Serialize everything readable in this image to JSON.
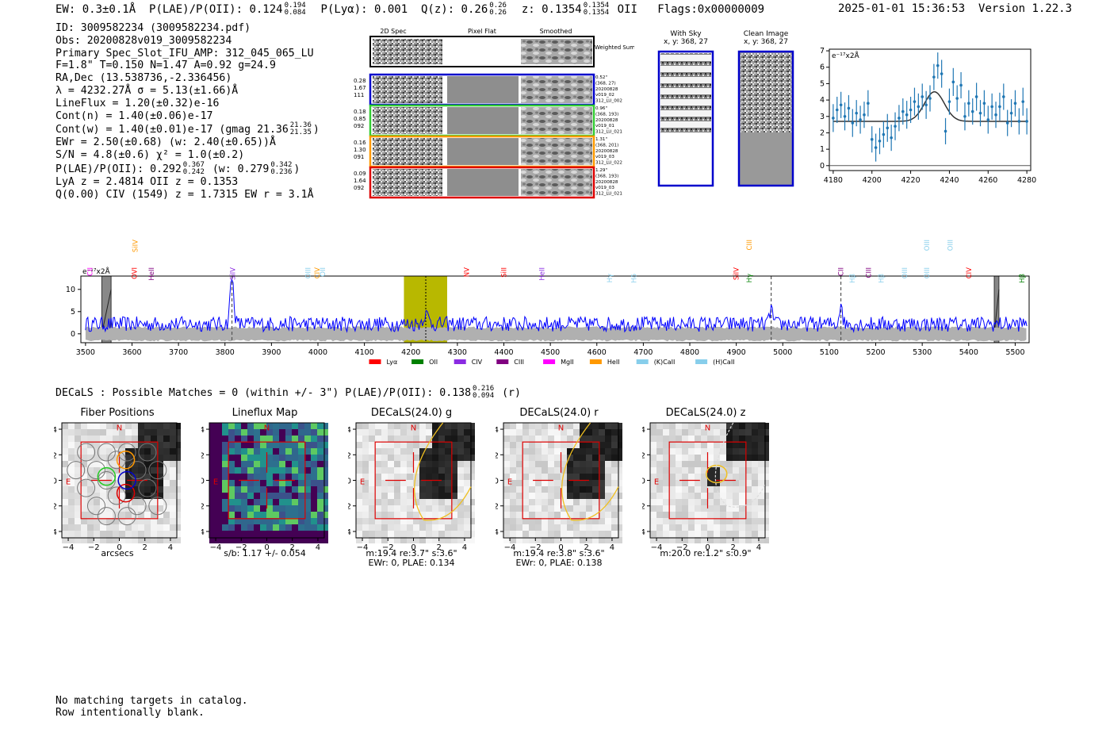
{
  "header": {
    "ew": "EW: 0.3±0.1Å",
    "plae_label": "P(LAE)/P(OII): 0.124",
    "plae_hi": "0.194",
    "plae_lo": "0.084",
    "plya": "P(Lyα): 0.001",
    "qz_label": "Q(z): 0.26",
    "qz_hi": "0.26",
    "qz_lo": "0.26",
    "z_label": "z: 0.1354",
    "z_hi": "0.1354",
    "z_lo": "0.1354",
    "z_line": "OII",
    "flags": "Flags:0x00000009",
    "datetime": "2025-01-01 15:36:53",
    "version": "Version 1.22.3"
  },
  "info": {
    "id": "ID: 3009582234 (3009582234.pdf)",
    "obs": "Obs: 20200828v019_3009582234",
    "primary": "Primary Spec_Slot_IFU_AMP: 312_045_065_LU",
    "fwhm": "F=1.8\"  T=0.150  N=1.47  A=0.92  g=24.9",
    "radec": "RA,Dec (13.538736,-2.336456)",
    "lambda": "λ = 4232.27Å  σ = 5.13(±1.66)Å",
    "lineflux": "LineFlux = 1.20(±0.32)e-16",
    "contn": "Cont(n) = 1.40(±0.06)e-17",
    "contw_main": "Cont(w) = 1.40(±0.01)e-17 (gmag 21.36",
    "contw_hi": "21.36",
    "contw_lo": "21.35",
    "contw_end": ")",
    "ewr": "EWr = 2.50(±0.68) (w: 2.40(±0.65))Å",
    "sn": "S/N = 4.8(±0.6)  χ² = 1.0(±0.2)",
    "plae_main": "P(LAE)/P(OII): 0.292",
    "plae_hi": "0.367",
    "plae_lo": "0.242",
    "plae_w": "(w: 0.279",
    "plae_w_hi": "0.342",
    "plae_w_lo": "0.236",
    "plae_end": ")",
    "lya": "LyA z = 2.4814  OII z = 0.1353",
    "q": "Q(0.00) CIV (1549) z = 1.7315  EW r = 3.1Å"
  },
  "spec2d": {
    "col_labels": [
      "2D Spec",
      "Pixel Flat",
      "Smoothed"
    ],
    "weighted_label": "Weighted Sum",
    "rows": [
      {
        "left": [
          "0.28",
          "1.67",
          "111"
        ],
        "right": [
          "0.52\"",
          "(368, 27)",
          "20200828",
          "v019_02",
          "312_LU_002"
        ],
        "color": "#0000cc"
      },
      {
        "left": [
          "0.18",
          "0.85",
          "092"
        ],
        "right": [
          "0.96\"",
          "(368, 193)",
          "20200828",
          "v019_01",
          "312_LU_021"
        ],
        "color": "#33cc33"
      },
      {
        "left": [
          "0.16",
          "1.30",
          "091"
        ],
        "right": [
          "1.31\"",
          "(368, 201)",
          "20200828",
          "v019_03",
          "312_LU_022"
        ],
        "color": "#ff9900"
      },
      {
        "left": [
          "0.09",
          "1.64",
          "092"
        ],
        "right": [
          "1.29\"",
          "(368, 193)",
          "20200828",
          "v019_03",
          "312_LU_021"
        ],
        "color": "#dd0000"
      }
    ]
  },
  "sky": {
    "with_sky_title": "With Sky",
    "with_sky_xy": "x, y: 368, 27",
    "clean_title": "Clean Image",
    "clean_xy": "x, y: 368, 27"
  },
  "colors": {
    "spectrum": "#0000ff",
    "fit_points": "#1f77b4",
    "highlight": "#b8b800",
    "lya": "#ff0000",
    "oii": "#008000",
    "civ": "#8a2be2",
    "ciii": "#800080",
    "mgii": "#ff00ff",
    "heii": "#ff9900",
    "kcaii": "#87ceeb",
    "hcaii": "#87ceeb"
  },
  "chart_data": [
    {
      "type": "scatter",
      "name": "line-fit-zoom",
      "ylabel_text": "e⁻¹⁷x2Å",
      "xlim": [
        4178,
        4282
      ],
      "ylim": [
        -0.3,
        7.1
      ],
      "xticks": [
        4180,
        4200,
        4220,
        4240,
        4260,
        4280
      ],
      "yticks": [
        0,
        1,
        2,
        3,
        4,
        5,
        6,
        7
      ],
      "x": [
        4180,
        4182,
        4184,
        4186,
        4188,
        4190,
        4192,
        4194,
        4196,
        4198,
        4200,
        4202,
        4204,
        4206,
        4208,
        4210,
        4212,
        4214,
        4216,
        4218,
        4220,
        4222,
        4224,
        4226,
        4228,
        4230,
        4232,
        4234,
        4236,
        4238,
        4240,
        4242,
        4244,
        4246,
        4248,
        4250,
        4252,
        4254,
        4256,
        4258,
        4260,
        4262,
        4264,
        4266,
        4268,
        4270,
        4272,
        4274,
        4276,
        4278,
        4280
      ],
      "y": [
        2.9,
        3.4,
        3.7,
        3.0,
        3.5,
        2.6,
        3.2,
        2.8,
        3.1,
        3.8,
        1.6,
        1.1,
        1.5,
        1.9,
        2.3,
        1.7,
        2.4,
        2.9,
        3.3,
        3.1,
        3.4,
        3.9,
        3.6,
        4.2,
        3.7,
        4.1,
        5.4,
        6.1,
        5.6,
        2.1,
        3.9,
        5.1,
        4.1,
        4.9,
        3.0,
        3.8,
        3.3,
        4.2,
        3.2,
        3.8,
        2.8,
        3.6,
        3.1,
        3.6,
        4.2,
        2.6,
        3.2,
        3.8,
        2.7,
        3.9,
        2.7
      ],
      "err": [
        0.85,
        0.8,
        0.8,
        0.85,
        0.8,
        0.85,
        0.8,
        0.85,
        0.8,
        0.8,
        0.8,
        0.85,
        0.8,
        0.8,
        0.85,
        0.8,
        0.85,
        0.8,
        0.8,
        0.85,
        0.8,
        0.85,
        0.8,
        0.8,
        0.85,
        0.8,
        0.8,
        0.8,
        0.85,
        0.8,
        0.8,
        0.85,
        0.8,
        0.8,
        0.85,
        0.8,
        0.8,
        0.85,
        0.8,
        0.8,
        0.85,
        0.8,
        0.8,
        0.85,
        0.8,
        0.8,
        0.85,
        0.8,
        0.8,
        0.85,
        0.8
      ],
      "fit": {
        "type": "gaussian",
        "mu": 4232.27,
        "sigma": 5.13,
        "amp": 1.8,
        "base": 2.7
      }
    },
    {
      "type": "line",
      "name": "full-spectrum",
      "ylabel_text": "e⁻¹⁷x2Å",
      "xlim": [
        3490,
        5530
      ],
      "ylim": [
        -2,
        13
      ],
      "xticks": [
        3500,
        3600,
        3700,
        3800,
        3900,
        4000,
        4100,
        4200,
        4300,
        4400,
        4500,
        4600,
        4700,
        4800,
        4900,
        5000,
        5100,
        5200,
        5300,
        5400,
        5500
      ],
      "yticks": [
        0,
        5,
        10
      ],
      "base_level": 2.2,
      "emission_peaks": [
        {
          "x": 3815,
          "amp": 10.5,
          "width": 4
        },
        {
          "x": 4232,
          "amp": 2.2,
          "width": 6
        },
        {
          "x": 4975,
          "amp": 3.8,
          "width": 3
        },
        {
          "x": 5125,
          "amp": 5.0,
          "width": 3
        }
      ],
      "highlight_band": [
        4185,
        4278
      ],
      "center_line": 4232,
      "dashed_lines": [
        3815,
        4975,
        5125
      ],
      "masked_bands": [
        [
          3535,
          3555
        ],
        [
          5455,
          5465
        ]
      ],
      "lines": [
        {
          "label": "CII",
          "x": 3510,
          "color": "#ff00ff",
          "tier": 1
        },
        {
          "label": "SiIV",
          "x": 3607,
          "color": "#ff9900",
          "tier": 0
        },
        {
          "label": "OVI",
          "x": 3605,
          "color": "#ff0000",
          "tier": 1
        },
        {
          "label": "HeII",
          "x": 3642,
          "color": "#800080",
          "tier": 1
        },
        {
          "label": "SiIV",
          "x": 3817,
          "color": "#8a2be2",
          "tier": 1
        },
        {
          "label": "OIII",
          "x": 3979,
          "color": "#87ceeb",
          "tier": 1
        },
        {
          "label": "CIV",
          "x": 3998,
          "color": "#ff9900",
          "tier": 1
        },
        {
          "label": "OII",
          "x": 4010,
          "color": "#87ceeb",
          "tier": 1
        },
        {
          "label": "NV",
          "x": 4320,
          "color": "#ff0000",
          "tier": 1
        },
        {
          "label": "SiII",
          "x": 4400,
          "color": "#ff0000",
          "tier": 1
        },
        {
          "label": "HeII",
          "x": 4482,
          "color": "#8a2be2",
          "tier": 1
        },
        {
          "label": "Hγ",
          "x": 4628,
          "color": "#87ceeb",
          "tier": 2
        },
        {
          "label": "Hδ",
          "x": 4680,
          "color": "#87ceeb",
          "tier": 2
        },
        {
          "label": "SiIV",
          "x": 4900,
          "color": "#ff0000",
          "tier": 1
        },
        {
          "label": "CIII",
          "x": 4928,
          "color": "#ff9900",
          "tier": 0
        },
        {
          "label": "Hγ",
          "x": 4928,
          "color": "#008000",
          "tier": 2
        },
        {
          "label": "CII",
          "x": 5125,
          "color": "#800080",
          "tier": 1
        },
        {
          "label": "Hβ",
          "x": 5150,
          "color": "#87ceeb",
          "tier": 2
        },
        {
          "label": "CIII",
          "x": 5185,
          "color": "#800080",
          "tier": 1
        },
        {
          "label": "Hβ",
          "x": 5212,
          "color": "#87ceeb",
          "tier": 2
        },
        {
          "label": "OIII",
          "x": 5262,
          "color": "#87ceeb",
          "tier": 1
        },
        {
          "label": "OIII",
          "x": 5310,
          "color": "#87ceeb",
          "tier": 0
        },
        {
          "label": "OIII",
          "x": 5310,
          "color": "#87ceeb",
          "tier": 1
        },
        {
          "label": "OIII",
          "x": 5360,
          "color": "#87ceeb",
          "tier": 0
        },
        {
          "label": "CIV",
          "x": 5400,
          "color": "#ff0000",
          "tier": 1
        },
        {
          "label": "Hβ",
          "x": 5515,
          "color": "#008000",
          "tier": 2
        }
      ],
      "legend": [
        {
          "label": "Lyα",
          "color": "#ff0000"
        },
        {
          "label": "OII",
          "color": "#008000"
        },
        {
          "label": "CIV",
          "color": "#8a2be2"
        },
        {
          "label": "CIII",
          "color": "#800080"
        },
        {
          "label": "MgII",
          "color": "#ff00ff"
        },
        {
          "label": "HeII",
          "color": "#ff9900"
        },
        {
          "label": "(K)CaII",
          "color": "#87ceeb"
        },
        {
          "label": "(H)CaII",
          "color": "#87ceeb"
        }
      ]
    }
  ],
  "decals": {
    "summary_main": "DECaLS : Possible Matches = 0 (within +/- 3\")  P(LAE)/P(OII): 0.138",
    "summary_hi": "0.216",
    "summary_lo": "0.094",
    "summary_end": "(r)",
    "axis_ticks": [
      "4",
      "2",
      "0",
      "−2",
      "−4"
    ],
    "xaxis_ticks": [
      "−4",
      "−2",
      "0",
      "2",
      "4"
    ],
    "n_label": "N",
    "e_label": "E",
    "panels": [
      {
        "title": "Fiber Positions",
        "caption": [
          "arcsecs"
        ]
      },
      {
        "title": "Lineflux Map",
        "caption": [
          "s/b: 1.17 +/- 0.054"
        ]
      },
      {
        "title": "DECaLS(24.0) g",
        "caption": [
          "m:19.4  re:3.7\"  s:3.6\"",
          "EWr: 0, PLAE: 0.134"
        ]
      },
      {
        "title": "DECaLS(24.0) r",
        "caption": [
          "m:19.4  re:3.8\"  s:3.6\"",
          "EWr: 0, PLAE: 0.138"
        ]
      },
      {
        "title": "DECaLS(24.0) z",
        "caption": [
          "m:20.0  re:1.2\"  s:0.9\""
        ]
      }
    ]
  },
  "footer": {
    "line1": "No matching targets in catalog.",
    "line2": "Row intentionally blank."
  }
}
